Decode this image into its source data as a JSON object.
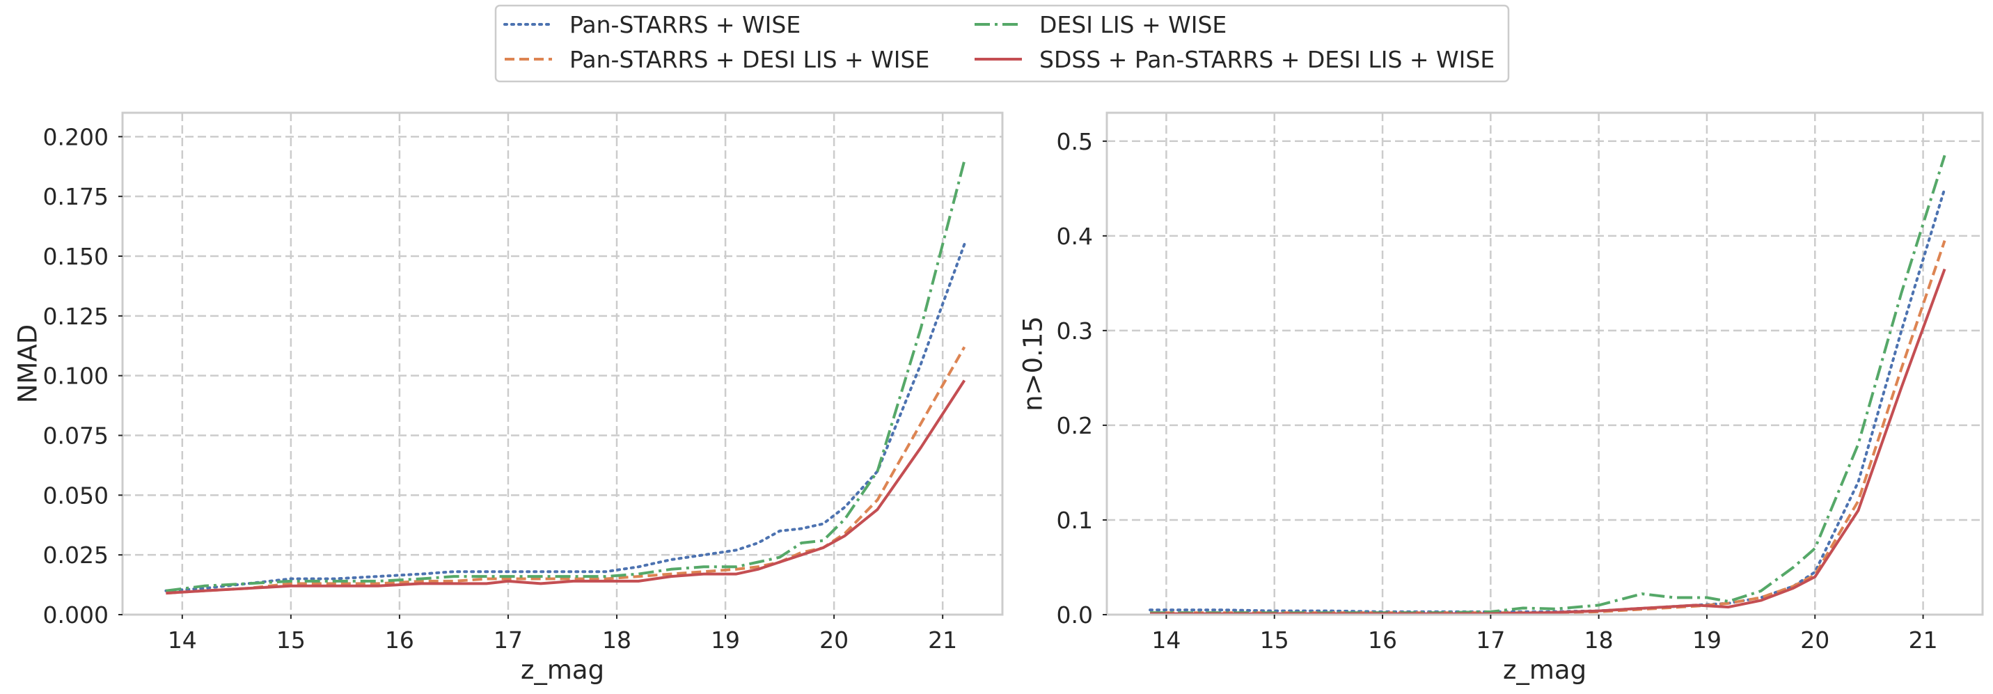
{
  "legend": {
    "placement": "top-center",
    "entries": [
      {
        "label": "Pan-STARRS + WISE",
        "color": "#4c72b0",
        "style": "dotted"
      },
      {
        "label": "Pan-STARRS + DESI LIS + WISE",
        "color": "#dd8452",
        "style": "dashed"
      },
      {
        "label": "DESI LIS + WISE",
        "color": "#55a868",
        "style": "dashdot"
      },
      {
        "label": "SDSS + Pan-STARRS + DESI LIS + WISE",
        "color": "#c44e52",
        "style": "solid"
      }
    ]
  },
  "chart_data": [
    {
      "type": "line",
      "xlabel": "z_mag",
      "ylabel": "NMAD",
      "xlim": [
        13.45,
        21.55
      ],
      "ylim": [
        0,
        0.21
      ],
      "xticks": [
        14,
        15,
        16,
        17,
        18,
        19,
        20,
        21
      ],
      "yticks": [
        0.0,
        0.025,
        0.05,
        0.075,
        0.1,
        0.125,
        0.15,
        0.175,
        0.2
      ],
      "ytick_labels": [
        "0.000",
        "0.025",
        "0.050",
        "0.075",
        "0.100",
        "0.125",
        "0.150",
        "0.175",
        "0.200"
      ],
      "grid": true,
      "series": [
        {
          "name": "Pan-STARRS + WISE",
          "x": [
            13.85,
            14.2,
            14.6,
            15.0,
            15.4,
            15.8,
            16.2,
            16.5,
            16.8,
            17.0,
            17.3,
            17.6,
            17.9,
            18.2,
            18.5,
            18.8,
            19.1,
            19.3,
            19.5,
            19.7,
            19.9,
            20.1,
            20.4,
            20.8,
            21.2
          ],
          "y": [
            0.01,
            0.011,
            0.013,
            0.015,
            0.015,
            0.016,
            0.017,
            0.018,
            0.018,
            0.018,
            0.018,
            0.018,
            0.018,
            0.02,
            0.023,
            0.025,
            0.027,
            0.03,
            0.035,
            0.036,
            0.038,
            0.045,
            0.06,
            0.105,
            0.155
          ]
        },
        {
          "name": "Pan-STARRS + DESI LIS + WISE",
          "x": [
            13.85,
            14.2,
            14.6,
            15.0,
            15.4,
            15.8,
            16.2,
            16.5,
            16.8,
            17.0,
            17.3,
            17.6,
            17.9,
            18.2,
            18.5,
            18.8,
            19.1,
            19.3,
            19.5,
            19.7,
            19.9,
            20.1,
            20.4,
            20.8,
            21.2
          ],
          "y": [
            0.009,
            0.01,
            0.011,
            0.013,
            0.013,
            0.013,
            0.014,
            0.014,
            0.015,
            0.015,
            0.015,
            0.015,
            0.015,
            0.016,
            0.017,
            0.018,
            0.019,
            0.02,
            0.022,
            0.026,
            0.028,
            0.034,
            0.048,
            0.08,
            0.112
          ]
        },
        {
          "name": "DESI LIS + WISE",
          "x": [
            13.85,
            14.2,
            14.6,
            15.0,
            15.4,
            15.8,
            16.2,
            16.5,
            16.8,
            17.0,
            17.3,
            17.6,
            17.9,
            18.2,
            18.5,
            18.8,
            19.1,
            19.3,
            19.5,
            19.7,
            19.9,
            20.1,
            20.4,
            20.8,
            21.2
          ],
          "y": [
            0.01,
            0.012,
            0.013,
            0.014,
            0.014,
            0.014,
            0.015,
            0.016,
            0.016,
            0.016,
            0.016,
            0.016,
            0.016,
            0.017,
            0.019,
            0.02,
            0.02,
            0.022,
            0.024,
            0.03,
            0.031,
            0.04,
            0.06,
            0.12,
            0.19
          ]
        },
        {
          "name": "SDSS + Pan-STARRS + DESI LIS + WISE",
          "x": [
            13.85,
            14.2,
            14.6,
            15.0,
            15.4,
            15.8,
            16.2,
            16.5,
            16.8,
            17.0,
            17.3,
            17.6,
            17.9,
            18.2,
            18.5,
            18.8,
            19.1,
            19.3,
            19.5,
            19.7,
            19.9,
            20.1,
            20.4,
            20.8,
            21.2
          ],
          "y": [
            0.009,
            0.01,
            0.011,
            0.012,
            0.012,
            0.012,
            0.013,
            0.013,
            0.013,
            0.014,
            0.013,
            0.014,
            0.014,
            0.014,
            0.016,
            0.017,
            0.017,
            0.019,
            0.022,
            0.025,
            0.028,
            0.033,
            0.044,
            0.07,
            0.098
          ]
        }
      ]
    },
    {
      "type": "line",
      "xlabel": "z_mag",
      "ylabel": "n>0.15",
      "xlim": [
        13.45,
        21.55
      ],
      "ylim": [
        0,
        0.53
      ],
      "xticks": [
        14,
        15,
        16,
        17,
        18,
        19,
        20,
        21
      ],
      "yticks": [
        0.0,
        0.1,
        0.2,
        0.3,
        0.4,
        0.5
      ],
      "ytick_labels": [
        "0.0",
        "0.1",
        "0.2",
        "0.3",
        "0.4",
        "0.5"
      ],
      "grid": true,
      "series": [
        {
          "name": "Pan-STARRS + WISE",
          "x": [
            13.85,
            14.5,
            15.0,
            15.5,
            16.0,
            16.5,
            17.0,
            17.5,
            18.0,
            18.3,
            18.6,
            18.9,
            19.2,
            19.5,
            19.8,
            20.0,
            20.4,
            20.8,
            21.2
          ],
          "y": [
            0.005,
            0.005,
            0.004,
            0.004,
            0.003,
            0.003,
            0.003,
            0.003,
            0.004,
            0.006,
            0.008,
            0.01,
            0.012,
            0.018,
            0.03,
            0.045,
            0.14,
            0.3,
            0.45
          ]
        },
        {
          "name": "Pan-STARRS + DESI LIS + WISE",
          "x": [
            13.85,
            14.5,
            15.0,
            15.5,
            16.0,
            16.5,
            17.0,
            17.5,
            18.0,
            18.3,
            18.6,
            18.9,
            19.2,
            19.5,
            19.8,
            20.0,
            20.4,
            20.8,
            21.2
          ],
          "y": [
            0.002,
            0.002,
            0.002,
            0.002,
            0.002,
            0.002,
            0.002,
            0.002,
            0.003,
            0.005,
            0.007,
            0.009,
            0.012,
            0.018,
            0.03,
            0.042,
            0.12,
            0.26,
            0.395
          ]
        },
        {
          "name": "DESI LIS + WISE",
          "x": [
            13.85,
            14.5,
            15.0,
            15.5,
            16.0,
            16.5,
            17.0,
            17.3,
            17.6,
            18.0,
            18.4,
            18.7,
            19.0,
            19.2,
            19.5,
            19.8,
            20.0,
            20.4,
            20.8,
            21.2
          ],
          "y": [
            0.002,
            0.002,
            0.002,
            0.002,
            0.002,
            0.002,
            0.003,
            0.007,
            0.006,
            0.01,
            0.022,
            0.018,
            0.018,
            0.014,
            0.025,
            0.05,
            0.07,
            0.18,
            0.34,
            0.485
          ]
        },
        {
          "name": "SDSS + Pan-STARRS + DESI LIS + WISE",
          "x": [
            13.85,
            14.5,
            15.0,
            15.5,
            16.0,
            16.5,
            17.0,
            17.5,
            18.0,
            18.3,
            18.6,
            18.9,
            19.2,
            19.5,
            19.8,
            20.0,
            20.4,
            20.8,
            21.2
          ],
          "y": [
            0.001,
            0.001,
            0.001,
            0.001,
            0.001,
            0.001,
            0.001,
            0.002,
            0.004,
            0.006,
            0.008,
            0.01,
            0.008,
            0.015,
            0.028,
            0.04,
            0.11,
            0.24,
            0.365
          ]
        }
      ]
    }
  ]
}
